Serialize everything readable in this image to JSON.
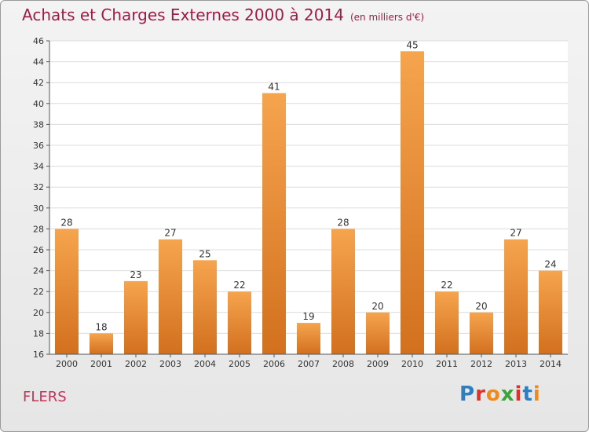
{
  "header": {
    "title": "Achats et Charges Externes 2000 à 2014",
    "subtitle": "(en milliers d'€)"
  },
  "footer": {
    "city": "FLERS",
    "brand": "Proxiti",
    "brand_colors": [
      "#2f7fc0",
      "#e0322b",
      "#f08a1c",
      "#3aa33a",
      "#e0322b",
      "#2f7fc0",
      "#f08a1c"
    ]
  },
  "chart_data": {
    "type": "bar",
    "title": "Achats et Charges Externes 2000 à 2014",
    "categories": [
      "2000",
      "2001",
      "2002",
      "2003",
      "2004",
      "2005",
      "2006",
      "2007",
      "2008",
      "2009",
      "2010",
      "2011",
      "2012",
      "2013",
      "2014"
    ],
    "values": [
      28,
      18,
      23,
      27,
      25,
      22,
      41,
      19,
      28,
      20,
      45,
      22,
      20,
      27,
      24
    ],
    "ylim": [
      16,
      46
    ],
    "yticks": [
      16,
      18,
      20,
      22,
      24,
      26,
      28,
      30,
      32,
      34,
      36,
      38,
      40,
      42,
      44,
      46
    ],
    "grid": true,
    "bar_color_top": "#f6a44e",
    "bar_color_bottom": "#d2701e"
  }
}
